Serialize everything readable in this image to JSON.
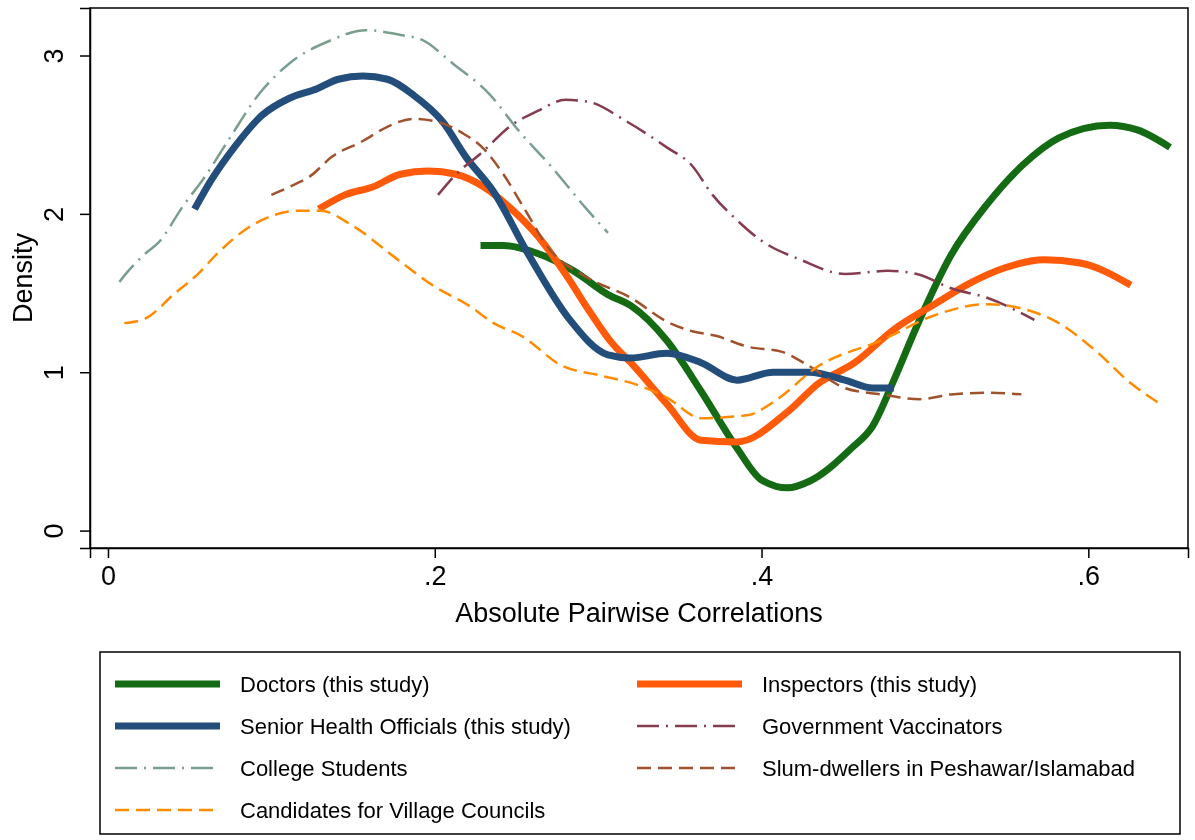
{
  "chart_data": {
    "type": "line",
    "xlabel": "Absolute Pairwise Correlations",
    "ylabel": "Density",
    "xlim": [
      -0.011,
      0.661
    ],
    "ylim": [
      -0.11,
      3.3
    ],
    "xticks": [
      0,
      {
        "value": 0.2,
        "label": ".2"
      },
      {
        "value": 0.4,
        "label": ".4"
      },
      {
        "value": 0.6,
        "label": ".6"
      }
    ],
    "yticks": [
      0,
      1,
      2,
      3
    ],
    "grid": false,
    "legend": "bottom",
    "series": [
      {
        "name": "Doctors (this study)",
        "color": "#156b14",
        "line_style": "solid",
        "x": [
          0.228,
          0.242,
          0.263,
          0.285,
          0.306,
          0.32,
          0.342,
          0.363,
          0.385,
          0.4,
          0.416,
          0.429,
          0.455,
          0.468,
          0.481,
          0.495,
          0.516,
          0.538,
          0.56,
          0.582,
          0.613,
          0.63,
          0.65
        ],
        "values": [
          1.8,
          1.8,
          1.75,
          1.64,
          1.49,
          1.42,
          1.2,
          0.88,
          0.52,
          0.32,
          0.27,
          0.31,
          0.52,
          0.66,
          0.95,
          1.29,
          1.74,
          2.06,
          2.31,
          2.48,
          2.56,
          2.53,
          2.42
        ]
      },
      {
        "name": "Inspectors (this study)",
        "color": "#ff5a0a",
        "line_style": "solid",
        "x": [
          0.129,
          0.145,
          0.162,
          0.179,
          0.196,
          0.213,
          0.23,
          0.247,
          0.263,
          0.28,
          0.295,
          0.308,
          0.32,
          0.342,
          0.363,
          0.385,
          0.416,
          0.435,
          0.457,
          0.481,
          0.506,
          0.527,
          0.549,
          0.573,
          0.595,
          0.626
        ],
        "values": [
          2.03,
          2.12,
          2.17,
          2.25,
          2.27,
          2.25,
          2.17,
          2.03,
          1.86,
          1.62,
          1.38,
          1.19,
          1.06,
          0.8,
          0.57,
          0.56,
          0.75,
          0.93,
          1.06,
          1.27,
          1.43,
          1.56,
          1.66,
          1.71,
          1.69,
          1.55
        ]
      },
      {
        "name": "Senior Health Officials (this study)",
        "color": "#234d7a",
        "line_style": "solid",
        "x": [
          0.053,
          0.063,
          0.078,
          0.094,
          0.111,
          0.128,
          0.141,
          0.156,
          0.171,
          0.187,
          0.205,
          0.219,
          0.236,
          0.257,
          0.282,
          0.306,
          0.32,
          0.342,
          0.363,
          0.385,
          0.407,
          0.429,
          0.451,
          0.468,
          0.481
        ],
        "values": [
          2.03,
          2.21,
          2.43,
          2.62,
          2.73,
          2.79,
          2.85,
          2.87,
          2.85,
          2.75,
          2.58,
          2.36,
          2.14,
          1.75,
          1.34,
          1.11,
          1.09,
          1.12,
          1.06,
          0.95,
          1.0,
          1.0,
          0.95,
          0.9,
          0.9
        ]
      },
      {
        "name": "Government Vaccinators",
        "color": "#843c4e",
        "line_style": "dashdot",
        "x": [
          0.202,
          0.213,
          0.228,
          0.247,
          0.263,
          0.28,
          0.293,
          0.318,
          0.342,
          0.357,
          0.37,
          0.385,
          0.4,
          0.424,
          0.451,
          0.477,
          0.495,
          0.516,
          0.538,
          0.567
        ],
        "values": [
          2.12,
          2.25,
          2.38,
          2.56,
          2.65,
          2.72,
          2.71,
          2.58,
          2.42,
          2.31,
          2.12,
          1.96,
          1.83,
          1.71,
          1.62,
          1.64,
          1.62,
          1.53,
          1.47,
          1.33
        ]
      },
      {
        "name": "College Students",
        "color": "#7a9e8e",
        "line_style": "dashdot",
        "x": [
          0.007,
          0.01,
          0.023,
          0.031,
          0.046,
          0.059,
          0.074,
          0.092,
          0.111,
          0.135,
          0.158,
          0.179,
          0.192,
          0.211,
          0.234,
          0.251,
          0.272,
          0.293,
          0.306
        ],
        "values": [
          1.57,
          1.61,
          1.75,
          1.82,
          2.05,
          2.23,
          2.47,
          2.75,
          2.95,
          3.09,
          3.16,
          3.13,
          3.1,
          2.95,
          2.75,
          2.53,
          2.29,
          2.03,
          1.88
        ]
      },
      {
        "name": "Slum-dwellers in Peshawar/Islamabad",
        "color": "#a0522d",
        "line_style": "dashed",
        "x": [
          0.1,
          0.111,
          0.124,
          0.137,
          0.156,
          0.171,
          0.187,
          0.202,
          0.217,
          0.23,
          0.242,
          0.255,
          0.27,
          0.293,
          0.32,
          0.342,
          0.357,
          0.372,
          0.392,
          0.412,
          0.429,
          0.451,
          0.473,
          0.497,
          0.516,
          0.538,
          0.559
        ],
        "values": [
          2.12,
          2.17,
          2.24,
          2.36,
          2.46,
          2.55,
          2.6,
          2.58,
          2.51,
          2.41,
          2.25,
          2.03,
          1.78,
          1.6,
          1.47,
          1.32,
          1.26,
          1.23,
          1.16,
          1.13,
          1.04,
          0.9,
          0.86,
          0.83,
          0.86,
          0.87,
          0.86
        ]
      },
      {
        "name": "Candidates for Village Councils",
        "color": "#ff8c00",
        "line_style": "dashed",
        "x": [
          0.01,
          0.023,
          0.04,
          0.055,
          0.067,
          0.084,
          0.101,
          0.118,
          0.13,
          0.149,
          0.175,
          0.2,
          0.221,
          0.236,
          0.253,
          0.278,
          0.301,
          0.324,
          0.342,
          0.363,
          0.392,
          0.407,
          0.435,
          0.473,
          0.506,
          0.538,
          0.56,
          0.582,
          0.604,
          0.626,
          0.644
        ],
        "values": [
          1.31,
          1.34,
          1.49,
          1.62,
          1.75,
          1.9,
          1.99,
          2.02,
          2.02,
          1.93,
          1.73,
          1.54,
          1.42,
          1.31,
          1.23,
          1.04,
          0.98,
          0.92,
          0.84,
          0.71,
          0.73,
          0.81,
          1.04,
          1.2,
          1.36,
          1.43,
          1.4,
          1.31,
          1.14,
          0.93,
          0.8
        ]
      }
    ]
  }
}
